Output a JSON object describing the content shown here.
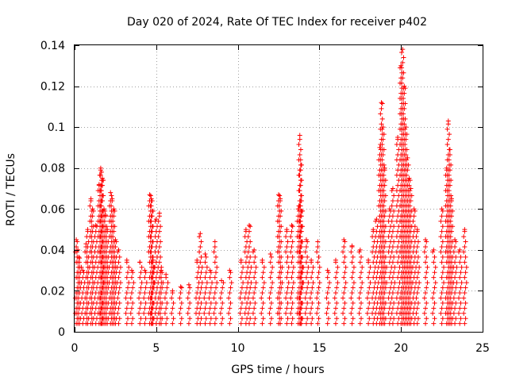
{
  "chart_data": {
    "type": "scatter",
    "title": "Day 020 of 2024, Rate Of TEC Index for receiver p402",
    "xlabel": "GPS time / hours",
    "ylabel": "ROTI / TECUs",
    "xlim": [
      0,
      25
    ],
    "ylim": [
      0,
      0.14
    ],
    "grid": true,
    "marker": "plus",
    "color": "#ff0000",
    "x_ticks": [
      0,
      5,
      10,
      15,
      20,
      25
    ],
    "x_tick_labels": [
      "0",
      "5",
      "10",
      "15",
      "20",
      "25"
    ],
    "y_ticks": [
      0,
      0.02,
      0.04,
      0.06,
      0.08,
      0.1,
      0.12,
      0.14
    ],
    "y_tick_labels": [
      "0",
      "0.02",
      "0.04",
      "0.06",
      "0.08",
      "0.1",
      "0.12",
      "0.14"
    ],
    "series": [
      {
        "name": "ROTI",
        "points": [
          [
            0.1,
            0.045
          ],
          [
            0.2,
            0.04
          ],
          [
            0.3,
            0.036
          ],
          [
            0.5,
            0.03
          ],
          [
            0.7,
            0.043
          ],
          [
            0.8,
            0.05
          ],
          [
            1.0,
            0.065
          ],
          [
            1.1,
            0.06
          ],
          [
            1.3,
            0.052
          ],
          [
            1.5,
            0.072
          ],
          [
            1.6,
            0.08
          ],
          [
            1.65,
            0.078
          ],
          [
            1.7,
            0.075
          ],
          [
            1.8,
            0.06
          ],
          [
            1.9,
            0.057
          ],
          [
            2.0,
            0.05
          ],
          [
            2.2,
            0.068
          ],
          [
            2.3,
            0.065
          ],
          [
            2.4,
            0.06
          ],
          [
            2.5,
            0.045
          ],
          [
            2.7,
            0.04
          ],
          [
            3.2,
            0.035
          ],
          [
            3.5,
            0.03
          ],
          [
            4.0,
            0.034
          ],
          [
            4.3,
            0.03
          ],
          [
            4.6,
            0.067
          ],
          [
            4.7,
            0.065
          ],
          [
            4.75,
            0.064
          ],
          [
            4.8,
            0.035
          ],
          [
            5.0,
            0.055
          ],
          [
            5.2,
            0.058
          ],
          [
            5.3,
            0.03
          ],
          [
            5.6,
            0.028
          ],
          [
            6.0,
            0.02
          ],
          [
            6.5,
            0.022
          ],
          [
            7.0,
            0.023
          ],
          [
            7.5,
            0.035
          ],
          [
            7.7,
            0.048
          ],
          [
            8.0,
            0.038
          ],
          [
            8.3,
            0.03
          ],
          [
            8.6,
            0.044
          ],
          [
            9.0,
            0.025
          ],
          [
            9.5,
            0.03
          ],
          [
            10.2,
            0.035
          ],
          [
            10.5,
            0.05
          ],
          [
            10.7,
            0.052
          ],
          [
            11.0,
            0.04
          ],
          [
            11.5,
            0.035
          ],
          [
            12.0,
            0.038
          ],
          [
            12.5,
            0.067
          ],
          [
            12.6,
            0.065
          ],
          [
            13.0,
            0.05
          ],
          [
            13.3,
            0.052
          ],
          [
            13.7,
            0.06
          ],
          [
            13.8,
            0.096
          ],
          [
            13.85,
            0.084
          ],
          [
            13.9,
            0.064
          ],
          [
            14.2,
            0.045
          ],
          [
            14.5,
            0.035
          ],
          [
            14.9,
            0.044
          ],
          [
            15.5,
            0.03
          ],
          [
            16.0,
            0.035
          ],
          [
            16.5,
            0.045
          ],
          [
            17.0,
            0.042
          ],
          [
            17.5,
            0.04
          ],
          [
            18.0,
            0.035
          ],
          [
            18.3,
            0.05
          ],
          [
            18.5,
            0.055
          ],
          [
            18.7,
            0.09
          ],
          [
            18.8,
            0.112
          ],
          [
            18.9,
            0.1
          ],
          [
            19.0,
            0.08
          ],
          [
            19.3,
            0.06
          ],
          [
            19.5,
            0.07
          ],
          [
            19.8,
            0.095
          ],
          [
            20.0,
            0.13
          ],
          [
            20.1,
            0.138
          ],
          [
            20.2,
            0.12
          ],
          [
            20.3,
            0.1
          ],
          [
            20.4,
            0.085
          ],
          [
            20.5,
            0.075
          ],
          [
            20.6,
            0.07
          ],
          [
            20.8,
            0.06
          ],
          [
            21.0,
            0.05
          ],
          [
            21.5,
            0.045
          ],
          [
            22.0,
            0.04
          ],
          [
            22.5,
            0.06
          ],
          [
            22.8,
            0.08
          ],
          [
            22.9,
            0.103
          ],
          [
            23.0,
            0.089
          ],
          [
            23.1,
            0.065
          ],
          [
            23.3,
            0.045
          ],
          [
            23.6,
            0.04
          ],
          [
            23.9,
            0.05
          ]
        ]
      }
    ]
  }
}
